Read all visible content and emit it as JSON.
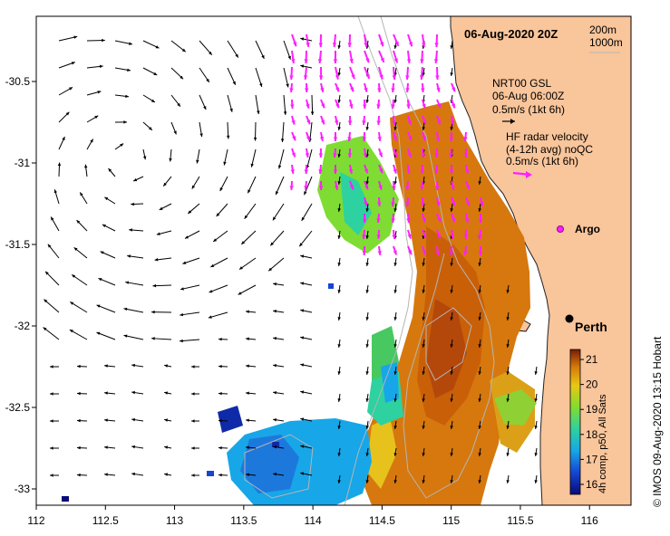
{
  "map": {
    "date_label": "06-Aug-2020 20Z",
    "depth_labels": [
      "200m",
      "1000m"
    ],
    "gsl_legend": {
      "title": "NRT00 GSL",
      "time": "06-Aug 06:00Z",
      "scale": "0.5m/s (1kt 6h)"
    },
    "radar_legend": {
      "title": "HF radar velocity",
      "subtitle": "(4-12h avg) noQC",
      "scale": "0.5m/s (1kt 6h)"
    },
    "argo_label": "Argo",
    "city_label": "Perth",
    "colorbar": {
      "label": "4h comp, p50, All Sats",
      "ticks": [
        "16",
        "17",
        "18",
        "19",
        "20",
        "21"
      ],
      "min": 15.6,
      "max": 21.4
    },
    "credit": "© IMOS 09-Aug-2020 13:15 Hobart",
    "x_ticks": [
      "112",
      "112.5",
      "113",
      "113.5",
      "114",
      "114.5",
      "115",
      "115.5",
      "116"
    ],
    "y_ticks": [
      "-30.5",
      "-31",
      "-31.5",
      "-32",
      "-32.5",
      "-33"
    ],
    "lon_range": [
      112,
      116.3
    ],
    "lat_range": [
      -33.1,
      -30.1
    ],
    "colors": {
      "land": "#f9c59b",
      "radar_arrow": "#ff1fff",
      "gsl_arrow": "#000000"
    }
  }
}
